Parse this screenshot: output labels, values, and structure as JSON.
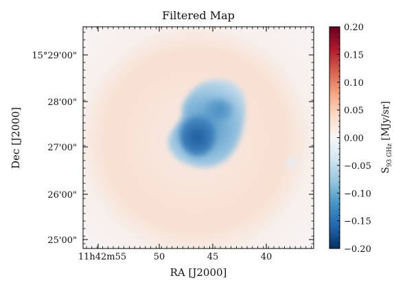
{
  "chart_data": {
    "type": "heatmap",
    "title": "Filtered Map",
    "xlabel": "RA [J2000]",
    "ylabel": "Dec [J2000]",
    "x_ticks": [
      "11h42m55",
      "50",
      "45",
      "40"
    ],
    "y_ticks": [
      "15°29'00\"",
      "28'00\"",
      "27'00\"",
      "26'00\"",
      "25'00\""
    ],
    "colorbar": {
      "label_main": "S",
      "label_sub": "93 GHz",
      "label_unit": " [MJy/sr]",
      "colormap": "RdBu_r",
      "vmin": -0.2,
      "vmax": 0.2,
      "ticks": [
        "0.20",
        "0.15",
        "0.10",
        "0.05",
        "0.00",
        "−0.05",
        "−0.10",
        "−0.15",
        "−0.20"
      ]
    },
    "features": [
      {
        "name": "central decrement",
        "min_value": -0.17
      },
      {
        "name": "positive ring",
        "peak_value": 0.03
      }
    ],
    "grid": false
  }
}
